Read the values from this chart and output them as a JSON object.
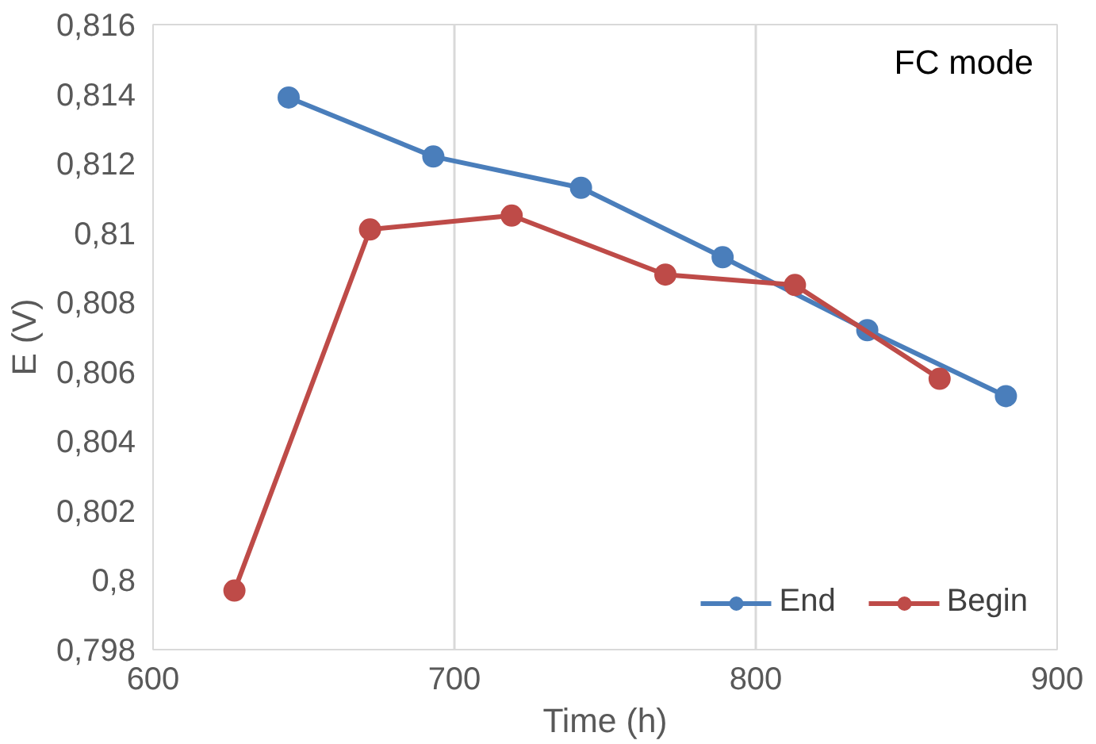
{
  "chart_data": {
    "type": "line",
    "xlabel": "Time (h)",
    "ylabel": "E (V)",
    "annotations": [
      "FC mode"
    ],
    "series": [
      {
        "name": "End",
        "color": "#4a7ebb",
        "x": [
          645,
          693,
          742,
          789,
          837,
          883
        ],
        "values": [
          0.8139,
          0.8122,
          0.8113,
          0.8093,
          0.8072,
          0.8053
        ]
      },
      {
        "name": "Begin",
        "color": "#be4b48",
        "x": [
          627,
          672,
          719,
          770,
          813,
          861
        ],
        "values": [
          0.7997,
          0.8101,
          0.8105,
          0.8088,
          0.8085,
          0.8058
        ]
      }
    ],
    "xlim": [
      600,
      900
    ],
    "xticks": [
      600,
      700,
      800,
      900
    ],
    "ylim": [
      0.798,
      0.816
    ],
    "yticks": [
      {
        "value": 0.798,
        "label": "0,798"
      },
      {
        "value": 0.8,
        "label": "0,8"
      },
      {
        "value": 0.802,
        "label": "0,802"
      },
      {
        "value": 0.804,
        "label": "0,804"
      },
      {
        "value": 0.806,
        "label": "0,806"
      },
      {
        "value": 0.808,
        "label": "0,808"
      },
      {
        "value": 0.81,
        "label": "0,81"
      },
      {
        "value": 0.812,
        "label": "0,812"
      },
      {
        "value": 0.814,
        "label": "0,814"
      },
      {
        "value": 0.816,
        "label": "0,816"
      }
    ],
    "grid": "x",
    "legend": "bottom right",
    "marker": "circle",
    "line_style": "solid"
  }
}
